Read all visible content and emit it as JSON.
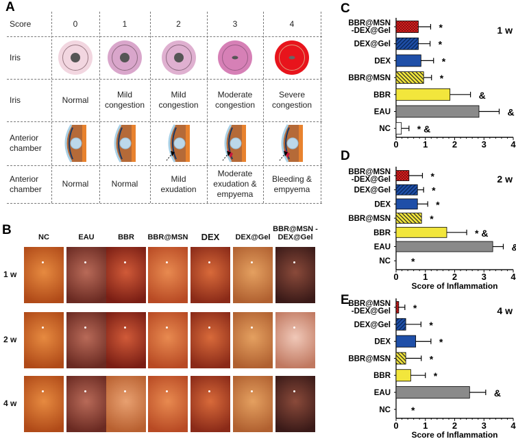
{
  "panel_a": {
    "label": "A",
    "header": [
      "Score",
      "0",
      "1",
      "2",
      "3",
      "4"
    ],
    "rows": [
      {
        "label": "Iris",
        "kind": "iris-image"
      },
      {
        "label": "Iris",
        "kind": "text",
        "cells": [
          "Normal",
          "Mild congestion",
          "Mild congestion",
          "Moderate congestion",
          "Severe congestion"
        ]
      },
      {
        "label": "Anterior chamber",
        "kind": "chamber-image"
      },
      {
        "label": "Anterior chamber",
        "kind": "text",
        "cells": [
          "Normal",
          "Normal",
          "Mild exudation",
          "Moderate exudation & empyema",
          "Bleeding & empyema"
        ]
      }
    ],
    "iris_colors": [
      {
        "outer": "#f2d6e0",
        "ring": "#9a7a84",
        "pupil": "#555555"
      },
      {
        "outer": "#d9a6cb",
        "ring": "#8d6a80",
        "pupil": "#555555"
      },
      {
        "outer": "#dfb0d0",
        "ring": "#8d6a80",
        "pupil": "#555555"
      },
      {
        "outer": "#d680b6",
        "ring": "#9a5c86",
        "pupil": "#555555"
      },
      {
        "outer": "#e8141c",
        "ring": "#e0a080",
        "pupil": "#666666"
      }
    ]
  },
  "panel_b": {
    "label": "B",
    "columns": [
      "NC",
      "EAU",
      "BBR",
      "BBR@MSN",
      "DEX",
      "DEX@Gel",
      "BBR@MSN -DEX@Gel"
    ],
    "rows": [
      "1 w",
      "2 w",
      "4 w"
    ]
  },
  "chart_data": [
    {
      "panel": "C",
      "type": "bar",
      "orientation": "horizontal",
      "timepoint": "1 w",
      "categories": [
        "BBR@MSN -DEX@Gel",
        "DEX@Gel",
        "DEX",
        "BBR@MSN",
        "BBR",
        "EAU",
        "NC"
      ],
      "values": [
        0.76,
        0.76,
        0.85,
        0.94,
        1.84,
        2.83,
        0.18
      ],
      "error": [
        0.42,
        0.4,
        0.43,
        0.27,
        0.7,
        0.69,
        0.26
      ],
      "annotations": [
        "*",
        "*",
        "*",
        "*",
        "&",
        "&",
        "* &"
      ],
      "xlabel": "Score of Inflammation",
      "xlim": [
        0,
        4
      ],
      "xticks": [
        "0",
        "1",
        "2",
        "3",
        "4"
      ]
    },
    {
      "panel": "D",
      "type": "bar",
      "orientation": "horizontal",
      "timepoint": "2 w",
      "categories": [
        "BBR@MSN -DEX@Gel",
        "DEX@Gel",
        "DEX",
        "BBR@MSN",
        "BBR",
        "EAU",
        "NC"
      ],
      "values": [
        0.44,
        0.73,
        0.73,
        0.87,
        1.73,
        3.3,
        0
      ],
      "error": [
        0.46,
        0.21,
        0.35,
        0,
        0.68,
        0.36,
        0
      ],
      "annotations": [
        "*",
        "*",
        "*",
        "*",
        "* &",
        "&",
        "*"
      ],
      "xlabel": "Score of Inflammation",
      "xlim": [
        0,
        4
      ],
      "xticks": [
        "0",
        "1",
        "2",
        "3",
        "4"
      ]
    },
    {
      "panel": "E",
      "type": "bar",
      "orientation": "horizontal",
      "timepoint": "4 w",
      "categories": [
        "BBR@MSN -DEX@Gel",
        "DEX@Gel",
        "DEX",
        "BBR@MSN",
        "BBR",
        "EAU",
        "NC"
      ],
      "values": [
        0.09,
        0.33,
        0.67,
        0.33,
        0.5,
        2.51,
        0
      ],
      "error": [
        0.21,
        0.52,
        0.52,
        0.53,
        0.5,
        0.55,
        0
      ],
      "annotations": [
        "*",
        "*",
        "*",
        "*",
        "*",
        "&",
        "*"
      ],
      "xlabel": "Score of Inflammation",
      "xlim": [
        0,
        4
      ],
      "xticks": [
        "0",
        "1",
        "2",
        "3",
        "4"
      ]
    }
  ],
  "bar_styles": [
    {
      "fill": "#d42020",
      "pattern": "checker"
    },
    {
      "fill": "#1f4fa8",
      "pattern": "hatch"
    },
    {
      "fill": "#1f4fa8",
      "pattern": "none"
    },
    {
      "fill": "#f2e63c",
      "pattern": "hatch"
    },
    {
      "fill": "#f2e63c",
      "pattern": "none"
    },
    {
      "fill": "#8a8a8a",
      "pattern": "none"
    },
    {
      "fill": "#ffffff",
      "pattern": "none"
    }
  ]
}
